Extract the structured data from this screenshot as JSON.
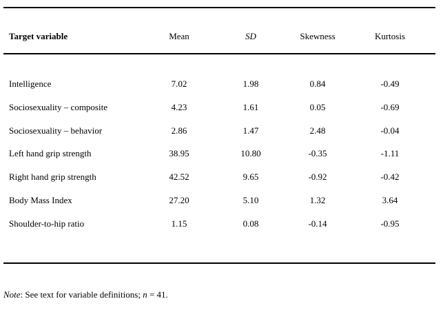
{
  "table": {
    "title_hint": "Descriptive statistics table",
    "columns": [
      "Target variable",
      "Mean",
      "SD",
      "Skewness",
      "Kurtosis"
    ],
    "rows": [
      {
        "label": "Intelligence",
        "values": [
          "7.02",
          "1.98",
          "0.84",
          "-0.49"
        ]
      },
      {
        "label": "Sociosexuality – composite",
        "values": [
          "4.23",
          "1.61",
          "0.05",
          "-0.69"
        ]
      },
      {
        "label": "Sociosexuality – behavior",
        "values": [
          "2.86",
          "1.47",
          "2.48",
          "-0.04"
        ]
      },
      {
        "label": "Left hand grip strength",
        "values": [
          "38.95",
          "10.80",
          "-0.35",
          "-1.11"
        ]
      },
      {
        "label": "Right hand grip strength",
        "values": [
          "42.52",
          "9.65",
          "-0.92",
          "-0.42"
        ]
      },
      {
        "label": "Body Mass Index",
        "values": [
          "27.20",
          "5.10",
          "1.32",
          "3.64"
        ]
      },
      {
        "label": "Shoulder-to-hip ratio",
        "values": [
          "1.15",
          "0.08",
          "-0.14",
          "-0.95"
        ]
      }
    ]
  },
  "note": {
    "label": "Note",
    "body": ": See text for variable definitions; ",
    "symbol": "n",
    "value": " = 41."
  }
}
